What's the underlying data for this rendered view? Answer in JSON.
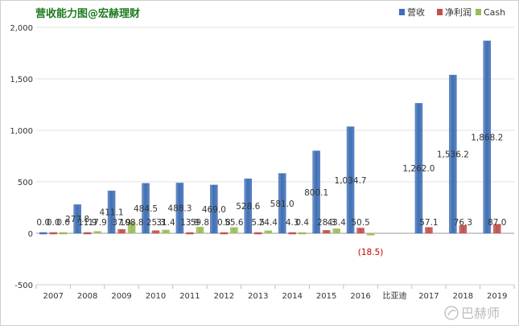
{
  "chart_data": {
    "type": "bar",
    "title": "营收能力图@宏赫理财",
    "xlabel": "",
    "ylabel": "",
    "ylim": [
      -500,
      2000
    ],
    "yticks": [
      -500,
      0,
      500,
      1000,
      1500,
      2000
    ],
    "ytick_labels": [
      "-500",
      "0",
      "500",
      "1,000",
      "1,500",
      "2,000"
    ],
    "categories": [
      "2007",
      "2008",
      "2009",
      "2010",
      "2011",
      "2012",
      "2013",
      "2014",
      "2015",
      "2016",
      "比亚迪",
      "2017",
      "2018",
      "2019"
    ],
    "legend_position": "top-right",
    "series": [
      {
        "name": "营收",
        "color": "#3f6fb5",
        "values": [
          0.0,
          277.8,
          411.1,
          484.5,
          488.3,
          469.0,
          528.6,
          581.0,
          800.1,
          1034.7,
          null,
          1262.0,
          1536.2,
          1868.2
        ],
        "labels": [
          "0.0",
          "277.8",
          "411.1",
          "484.5",
          "488.3",
          "469.0",
          "528.6",
          "581.0",
          "800.1",
          "1,034.7",
          "",
          "1,262.0",
          "1,536.2",
          "1,868.2"
        ]
      },
      {
        "name": "净利润",
        "color": "#c0504d",
        "values": [
          0.0,
          11.9,
          37.9,
          25.3,
          13.9,
          0.8,
          5.5,
          4.3,
          28.3,
          50.5,
          null,
          57.1,
          76.3,
          87.0
        ],
        "labels": [
          "0.0",
          "11.9",
          "37.9",
          "25.3",
          "13.9",
          "0.8",
          "5.5",
          "4.3",
          "28.3",
          "50.5",
          "",
          "57.1",
          "76.3",
          "87.0"
        ]
      },
      {
        "name": "Cash",
        "color": "#9bbb59",
        "values": [
          0.0,
          17.9,
          108.8,
          31.4,
          59.8,
          55.6,
          24.4,
          0.4,
          43.4,
          -18.5,
          null,
          null,
          null,
          null
        ],
        "labels": [
          "0.0",
          "17.9",
          "108.8",
          "31.4",
          "59.8",
          "55.6",
          "24.4",
          "0.4",
          "43.4",
          "(18.5)",
          "",
          "",
          "",
          ""
        ]
      }
    ]
  },
  "watermark": "巴赫师"
}
